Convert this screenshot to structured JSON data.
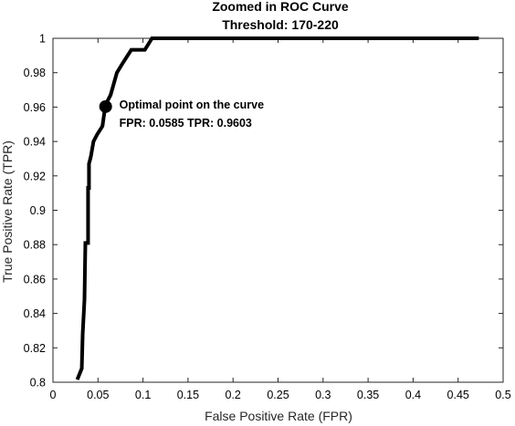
{
  "chart_data": {
    "type": "line",
    "title": "Zoomed in ROC Curve",
    "subtitle": "Threshold: 170-220",
    "xlabel": "False Positive Rate (FPR)",
    "ylabel": "True Positive Rate (TPR)",
    "xlim": [
      0,
      0.5
    ],
    "ylim": [
      0.8,
      1.0
    ],
    "xticks": [
      0,
      0.05,
      0.1,
      0.15,
      0.2,
      0.25,
      0.3,
      0.35,
      0.4,
      0.45,
      0.5
    ],
    "xtick_labels": [
      "0",
      "0.05",
      "0.1",
      "0.15",
      "0.2",
      "0.25",
      "0.3",
      "0.35",
      "0.4",
      "0.45",
      "0.5"
    ],
    "yticks": [
      0.8,
      0.82,
      0.84,
      0.86,
      0.88,
      0.9,
      0.92,
      0.94,
      0.96,
      0.98,
      1.0
    ],
    "ytick_labels": [
      "0.8",
      "0.82",
      "0.84",
      "0.86",
      "0.88",
      "0.9",
      "0.92",
      "0.94",
      "0.96",
      "0.98",
      "1"
    ],
    "grid": false,
    "series": [
      {
        "color": "#000000",
        "x": [
          0.027,
          0.032,
          0.033,
          0.035,
          0.036,
          0.039,
          0.039,
          0.04,
          0.04,
          0.042,
          0.045,
          0.048,
          0.049,
          0.055,
          0.058,
          0.061,
          0.064,
          0.071,
          0.078,
          0.087,
          0.095,
          0.102,
          0.11,
          0.12,
          0.473
        ],
        "y": [
          0.8015,
          0.808,
          0.828,
          0.848,
          0.881,
          0.881,
          0.913,
          0.913,
          0.927,
          0.931,
          0.94,
          0.943,
          0.944,
          0.949,
          0.9603,
          0.964,
          0.967,
          0.98,
          0.986,
          0.9933,
          0.9933,
          0.9933,
          1.0,
          1.0,
          1.0
        ]
      }
    ],
    "annotation": {
      "x": 0.0585,
      "y": 0.9603,
      "line1": "Optimal point on the curve",
      "line2": "FPR: 0.0585 TPR: 0.9603"
    }
  }
}
